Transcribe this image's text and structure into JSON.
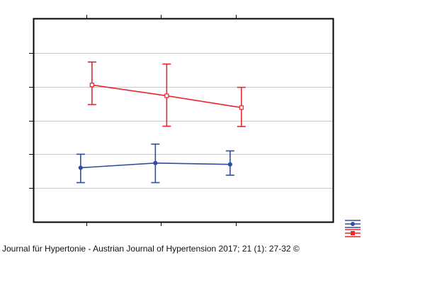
{
  "caption": {
    "text": "Journal für Hypertonie - Austrian Journal of Hypertension 2017; 21 (1): 27-32",
    "copyright_symbol": "©"
  },
  "colors": {
    "series_red": "#e8262c",
    "series_blue": "#2f4ea0",
    "gridline": "#c8c8c8",
    "frame": "#000000",
    "text": "#111111",
    "background": "#ffffff"
  },
  "chart_data": {
    "type": "line",
    "title": "",
    "xlabel": "",
    "ylabel": "",
    "x": [
      1,
      2,
      3
    ],
    "xlim": [
      0.3,
      4.3
    ],
    "ylim": [
      0,
      6
    ],
    "yticks": [
      1,
      2,
      3,
      4,
      5
    ],
    "xticks": [
      1,
      2,
      3
    ],
    "tick_labels_visible": false,
    "grid": "horizontal",
    "legend_placement": "bottom-right",
    "series": [
      {
        "color": "#e8262c",
        "marker": "square",
        "values": [
          4.05,
          3.73,
          3.38
        ],
        "error_low": [
          3.47,
          2.83,
          2.82
        ],
        "error_high": [
          4.73,
          4.67,
          3.98
        ]
      },
      {
        "color": "#2f4ea0",
        "marker": "circle",
        "values": [
          1.6,
          1.74,
          1.7
        ],
        "error_low": [
          1.16,
          1.16,
          1.38
        ],
        "error_high": [
          2.0,
          2.3,
          2.1
        ]
      }
    ]
  }
}
